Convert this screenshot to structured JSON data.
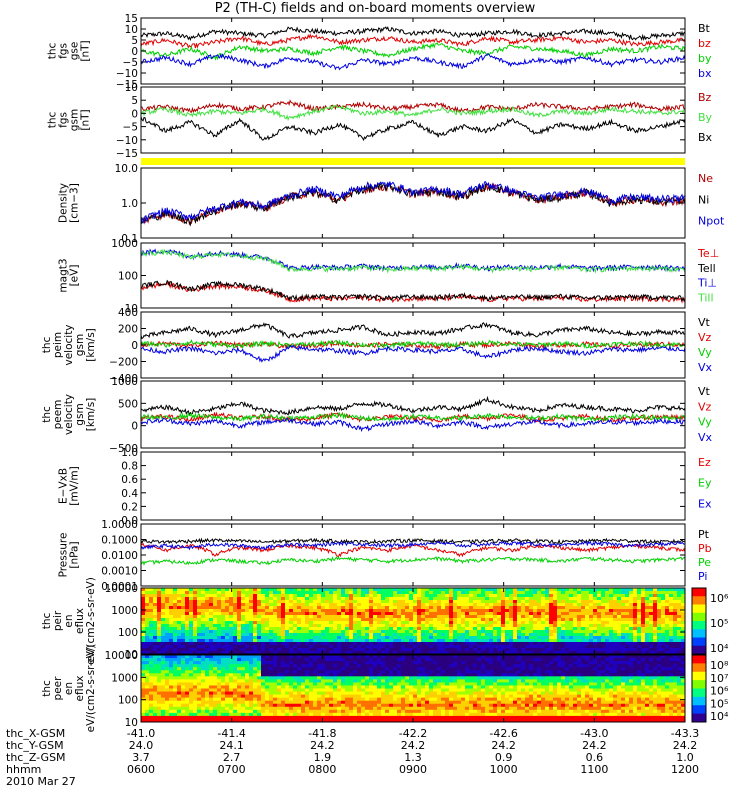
{
  "title": "P2 (TH-C) fields and on-board moments overview",
  "colors": {
    "black": "#000000",
    "red": "#e00000",
    "darkred": "#b00000",
    "green": "#00d000",
    "lightgreen": "#40e040",
    "blue": "#0000e0",
    "yellow": "#ffff00"
  },
  "footer": {
    "labels": [
      "thc_X-GSM",
      "thc_Y-GSM",
      "thc_Z-GSM",
      "hhmm",
      "2010 Mar 27"
    ],
    "x_gsm": [
      "-41.0",
      "-41.4",
      "-41.8",
      "-42.2",
      "-42.6",
      "-43.0",
      "-43.3"
    ],
    "y_gsm": [
      "24.0",
      "24.1",
      "24.2",
      "24.2",
      "24.2",
      "24.2",
      "24.2"
    ],
    "z_gsm": [
      "3.7",
      "2.7",
      "1.9",
      "1.3",
      "0.9",
      "0.6",
      "1.0"
    ],
    "hhmm": [
      "0600",
      "0700",
      "0800",
      "0900",
      "1000",
      "1100",
      "1200"
    ]
  },
  "chart_data": [
    {
      "type": "line",
      "ylabel": "thc fgs gse [nT]",
      "yticks": [
        "15",
        "10",
        "5",
        "0",
        "−5",
        "−10",
        "−15"
      ],
      "ylim": [
        -15,
        15
      ],
      "series": [
        {
          "name": "Bt",
          "color": "#000000",
          "values": [
            7,
            8,
            6,
            9,
            8,
            7,
            10,
            9,
            8,
            9,
            10,
            8,
            9,
            7,
            8,
            9,
            7,
            8,
            9,
            8,
            6,
            7,
            8
          ]
        },
        {
          "name": "bz",
          "color": "#e00000",
          "values": [
            3,
            5,
            2,
            4,
            6,
            3,
            5,
            7,
            4,
            5,
            6,
            4,
            5,
            3,
            6,
            4,
            5,
            6,
            4,
            5,
            3,
            4,
            5
          ]
        },
        {
          "name": "by",
          "color": "#00d000",
          "values": [
            0,
            -2,
            1,
            -3,
            2,
            0,
            1,
            -1,
            2,
            0,
            -2,
            1,
            3,
            0,
            -1,
            2,
            1,
            0,
            -2,
            1,
            0,
            2,
            1
          ]
        },
        {
          "name": "bx",
          "color": "#0000e0",
          "values": [
            -5,
            -3,
            -6,
            -2,
            -4,
            -7,
            -3,
            -5,
            -8,
            -4,
            -6,
            -3,
            -5,
            -7,
            -2,
            -6,
            -4,
            -5,
            -3,
            -6,
            -4,
            -5,
            -3
          ]
        }
      ]
    },
    {
      "type": "line",
      "ylabel": "thc fgs gsm [nT]",
      "yticks": [
        "10",
        "5",
        "0",
        "−5",
        "−10",
        "−15"
      ],
      "ylim": [
        -18,
        12
      ],
      "series": [
        {
          "name": "Bz",
          "color": "#b00000",
          "values": [
            2,
            3,
            1,
            4,
            2,
            3,
            5,
            2,
            3,
            4,
            2,
            3,
            4,
            1,
            3,
            2,
            4,
            3,
            2,
            3,
            4,
            2,
            3
          ]
        },
        {
          "name": "By",
          "color": "#40e040",
          "values": [
            0,
            2,
            -1,
            1,
            0,
            2,
            -2,
            1,
            3,
            0,
            1,
            -1,
            2,
            0,
            1,
            2,
            -1,
            1,
            0,
            2,
            1,
            0,
            1
          ]
        },
        {
          "name": "Bx",
          "color": "#000000",
          "values": [
            -2,
            -8,
            -4,
            -10,
            -3,
            -12,
            -6,
            -9,
            -5,
            -11,
            -7,
            -4,
            -10,
            -6,
            -8,
            -3,
            -9,
            -5,
            -7,
            -4,
            -8,
            -6,
            -3
          ]
        }
      ]
    },
    {
      "type": "line",
      "ylabel": "Density [cm−3]",
      "scale": "log",
      "yticks": [
        "10.0",
        "1.0",
        "0.1"
      ],
      "ylim": [
        0.1,
        10
      ],
      "series": [
        {
          "name": "Ne",
          "color": "#b00000",
          "values": [
            0.3,
            0.5,
            0.3,
            0.6,
            1.0,
            0.7,
            1.5,
            2.0,
            1.2,
            2.5,
            3.0,
            1.8,
            2.2,
            1.5,
            3.0,
            2.0,
            1.2,
            1.5,
            2.0,
            1.0,
            1.3,
            1.1,
            1.2
          ]
        },
        {
          "name": "Ni",
          "color": "#000000",
          "values": [
            0.3,
            0.5,
            0.3,
            0.6,
            1.0,
            0.7,
            1.5,
            2.0,
            1.2,
            2.5,
            3.0,
            1.8,
            2.2,
            1.5,
            3.0,
            2.0,
            1.2,
            1.5,
            2.0,
            1.0,
            1.3,
            1.1,
            1.2
          ]
        },
        {
          "name": "Npot",
          "color": "#0000e0",
          "values": [
            0.3,
            0.6,
            0.4,
            0.7,
            1.1,
            0.8,
            1.6,
            2.5,
            1.5,
            3.0,
            3.5,
            2.0,
            2.5,
            1.8,
            3.5,
            2.2,
            1.4,
            1.8,
            2.2,
            1.2,
            1.5,
            1.3,
            1.4
          ]
        }
      ]
    },
    {
      "type": "line",
      "ylabel": "magt3 [eV]",
      "scale": "log",
      "yticks": [
        "1000",
        "100",
        "10"
      ],
      "ylim": [
        5,
        4000
      ],
      "series": [
        {
          "name": "Te⊥",
          "color": "#e00000",
          "values": [
            40,
            60,
            30,
            50,
            45,
            30,
            12,
            14,
            13,
            15,
            12,
            14,
            13,
            16,
            12,
            14,
            13,
            15,
            12,
            13,
            14,
            13,
            12
          ]
        },
        {
          "name": "Tell",
          "color": "#000000",
          "values": [
            50,
            70,
            35,
            60,
            55,
            35,
            14,
            16,
            15,
            17,
            14,
            16,
            15,
            18,
            14,
            16,
            15,
            17,
            14,
            15,
            16,
            15,
            14
          ]
        },
        {
          "name": "Ti⊥",
          "color": "#0000e0",
          "values": [
            1500,
            1800,
            1000,
            1500,
            1200,
            900,
            300,
            350,
            320,
            380,
            300,
            350,
            330,
            400,
            300,
            350,
            320,
            380,
            300,
            320,
            350,
            330,
            300
          ]
        },
        {
          "name": "Till",
          "color": "#40e040",
          "values": [
            1300,
            1600,
            900,
            1300,
            1100,
            800,
            260,
            300,
            280,
            330,
            260,
            300,
            290,
            350,
            260,
            300,
            280,
            330,
            260,
            280,
            300,
            290,
            260
          ]
        }
      ]
    },
    {
      "type": "line",
      "ylabel": "thc peim velocity gsm [km/s]",
      "yticks": [
        "400",
        "200",
        "0",
        "−200",
        "−400"
      ],
      "ylim": [
        -400,
        400
      ],
      "series": [
        {
          "name": "Vt",
          "color": "#000000",
          "values": [
            100,
            150,
            200,
            120,
            180,
            250,
            100,
            150,
            180,
            220,
            120,
            160,
            140,
            200,
            250,
            150,
            120,
            180,
            200,
            150,
            130,
            160,
            140
          ]
        },
        {
          "name": "Vz",
          "color": "#e00000",
          "values": [
            0,
            20,
            -10,
            30,
            0,
            10,
            -20,
            0,
            20,
            -10,
            10,
            0,
            -20,
            10,
            0,
            20,
            -10,
            0,
            10,
            -10,
            0,
            10,
            0
          ]
        },
        {
          "name": "Vy",
          "color": "#00d000",
          "values": [
            20,
            0,
            30,
            10,
            -10,
            20,
            0,
            10,
            30,
            0,
            -10,
            20,
            10,
            0,
            30,
            10,
            0,
            20,
            -10,
            10,
            20,
            0,
            10
          ]
        },
        {
          "name": "Vx",
          "color": "#0000e0",
          "values": [
            -50,
            -80,
            -40,
            -100,
            -60,
            -200,
            -30,
            -50,
            -70,
            -100,
            -40,
            -60,
            -80,
            -50,
            -150,
            -60,
            -40,
            -80,
            -100,
            -50,
            -60,
            -40,
            -50
          ]
        }
      ]
    },
    {
      "type": "line",
      "ylabel": "thc peem velocity gsm [km/s]",
      "yticks": [
        "1000",
        "500",
        "0",
        "−500"
      ],
      "ylim": [
        -800,
        1000
      ],
      "series": [
        {
          "name": "Vt",
          "color": "#000000",
          "values": [
            200,
            300,
            150,
            250,
            400,
            200,
            150,
            300,
            250,
            400,
            350,
            200,
            300,
            250,
            500,
            300,
            200,
            350,
            300,
            250,
            200,
            300,
            250
          ]
        },
        {
          "name": "Vz",
          "color": "#e00000",
          "values": [
            0,
            50,
            -50,
            100,
            0,
            50,
            -50,
            0,
            100,
            -50,
            50,
            0,
            -50,
            50,
            0,
            100,
            -50,
            0,
            50,
            -50,
            0,
            50,
            0
          ]
        },
        {
          "name": "Vy",
          "color": "#00d000",
          "values": [
            50,
            0,
            80,
            20,
            -20,
            50,
            0,
            30,
            80,
            0,
            -30,
            50,
            20,
            0,
            80,
            30,
            0,
            50,
            -30,
            20,
            50,
            0,
            30
          ]
        },
        {
          "name": "Vx",
          "color": "#0000e0",
          "values": [
            -100,
            -50,
            -150,
            -80,
            -200,
            -100,
            -50,
            -150,
            -100,
            -300,
            -150,
            -80,
            -200,
            -100,
            -250,
            -150,
            -100,
            -200,
            -150,
            -100,
            -120,
            -80,
            -100
          ]
        }
      ]
    },
    {
      "type": "line",
      "ylabel": "E−VxB [mV/m]",
      "yticks": [
        "1.0",
        "0.8",
        "0.6",
        "0.4",
        "0.2",
        "0.0"
      ],
      "ylim": [
        0,
        1
      ],
      "series": [
        {
          "name": "Ez",
          "color": "#e00000",
          "values": []
        },
        {
          "name": "Ey",
          "color": "#00d000",
          "values": []
        },
        {
          "name": "Ex",
          "color": "#0000e0",
          "values": []
        }
      ]
    },
    {
      "type": "line",
      "ylabel": "Pressure [nPa]",
      "scale": "log",
      "yticks": [
        "1.0000",
        "0.1000",
        "0.0100",
        "0.0010",
        "0.0001"
      ],
      "ylim": [
        0.0001,
        1
      ],
      "series": [
        {
          "name": "Pt",
          "color": "#000000",
          "values": [
            0.08,
            0.07,
            0.08,
            0.09,
            0.08,
            0.07,
            0.08,
            0.09,
            0.08,
            0.07,
            0.08,
            0.09,
            0.08,
            0.07,
            0.08,
            0.09,
            0.08,
            0.07,
            0.08,
            0.09,
            0.08,
            0.07,
            0.08
          ]
        },
        {
          "name": "Pb",
          "color": "#e00000",
          "values": [
            0.05,
            0.02,
            0.04,
            0.01,
            0.03,
            0.02,
            0.04,
            0.03,
            0.01,
            0.03,
            0.02,
            0.04,
            0.02,
            0.01,
            0.03,
            0.02,
            0.04,
            0.03,
            0.02,
            0.03,
            0.04,
            0.03,
            0.02
          ]
        },
        {
          "name": "Pe",
          "color": "#00d000",
          "values": [
            0.003,
            0.004,
            0.003,
            0.005,
            0.004,
            0.003,
            0.005,
            0.004,
            0.006,
            0.005,
            0.004,
            0.005,
            0.006,
            0.004,
            0.005,
            0.006,
            0.005,
            0.004,
            0.006,
            0.005,
            0.004,
            0.005,
            0.006
          ]
        },
        {
          "name": "Pi",
          "color": "#0000e0",
          "values": [
            0.03,
            0.04,
            0.03,
            0.05,
            0.04,
            0.03,
            0.05,
            0.04,
            0.06,
            0.05,
            0.04,
            0.05,
            0.06,
            0.04,
            0.05,
            0.06,
            0.05,
            0.04,
            0.06,
            0.05,
            0.04,
            0.05,
            0.06
          ]
        }
      ]
    },
    {
      "type": "heatmap",
      "ylabel": "thc peir en eflux eV/(cm2-s-sr-eV)",
      "yticks": [
        "10000",
        "1000",
        "100",
        "10"
      ],
      "colorbar_ticks": [
        "10⁶",
        "10⁵",
        "10⁴"
      ]
    },
    {
      "type": "heatmap",
      "ylabel": "thc peer en eflux eV/(cm2-s-sr-eV)",
      "yticks": [
        "10000",
        "1000",
        "100",
        "10"
      ],
      "colorbar_ticks": [
        "10⁸",
        "10⁷",
        "10⁶",
        "10⁵",
        "10⁴"
      ]
    }
  ]
}
